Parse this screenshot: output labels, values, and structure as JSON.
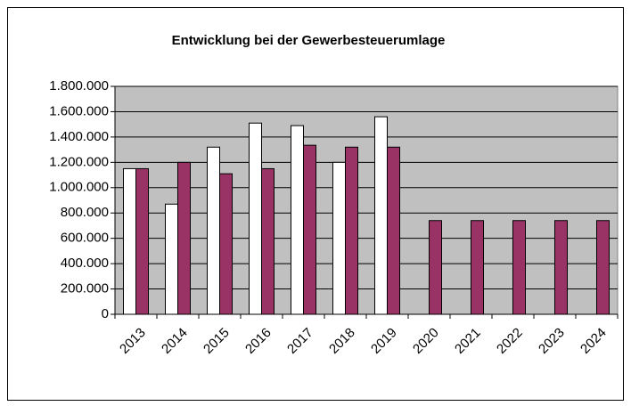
{
  "chart_data": {
    "type": "bar",
    "title": "Entwicklung bei der Gewerbesteuerumlage",
    "categories": [
      "2013",
      "2014",
      "2015",
      "2016",
      "2017",
      "2018",
      "2019",
      "2020",
      "2021",
      "2022",
      "2023",
      "2024"
    ],
    "series": [
      {
        "color": "#ffffff",
        "values": [
          1150000,
          870000,
          1320000,
          1510000,
          1490000,
          1200000,
          1560000,
          null,
          null,
          null,
          null,
          null
        ]
      },
      {
        "color": "#993366",
        "values": [
          1150000,
          1200000,
          1110000,
          1150000,
          1335000,
          1320000,
          1320000,
          740000,
          740000,
          740000,
          740000,
          740000
        ]
      }
    ],
    "ylim": [
      0,
      1800000
    ],
    "yticks": [
      0,
      {
        "value": 200000,
        "label": "200.000"
      },
      {
        "value": 400000,
        "label": "400.000"
      },
      {
        "value": 600000,
        "label": "600.000"
      },
      {
        "value": 800000,
        "label": "800.000"
      },
      {
        "value": 1000000,
        "label": "1.000.000"
      },
      {
        "value": 1200000,
        "label": "1.200.000"
      },
      {
        "value": 1400000,
        "label": "1.400.000"
      },
      {
        "value": 1600000,
        "label": "1.600.000"
      },
      {
        "value": 1800000,
        "label": "1.800.000"
      }
    ],
    "grid": true,
    "plot_background": "#c0c0c0"
  }
}
